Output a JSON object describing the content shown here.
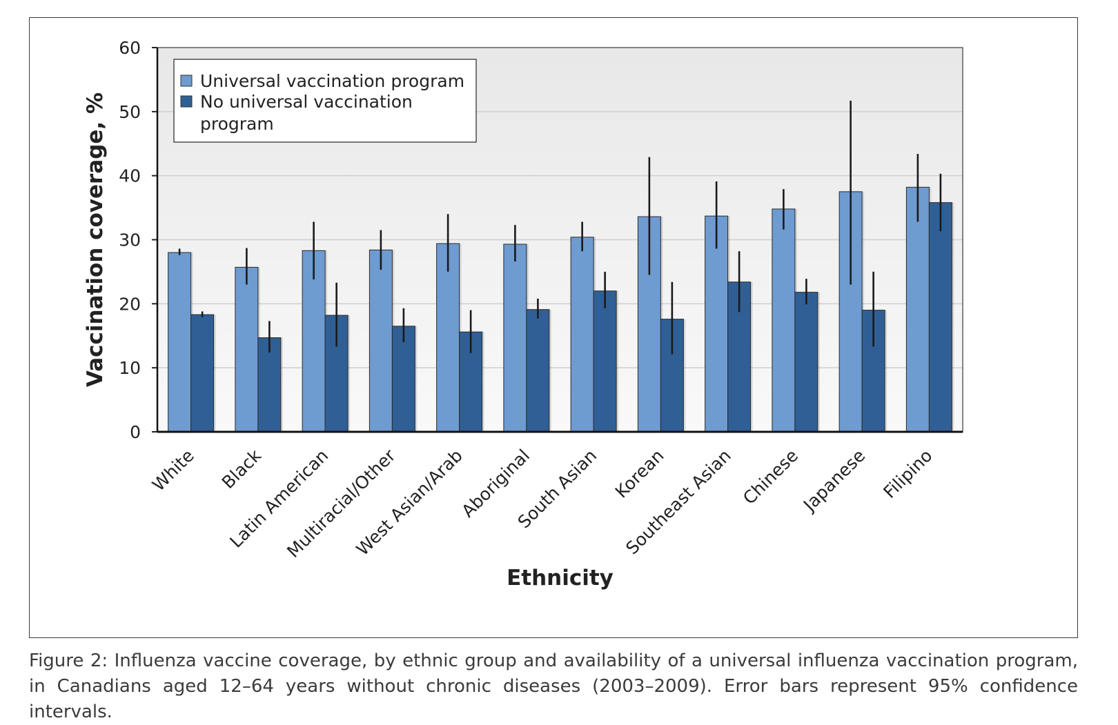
{
  "figure": {
    "caption": "Figure 2: Influenza vaccine coverage, by ethnic group and availability of a universal influenza vaccination program, in Canadians aged 12–64 years without chronic diseases (2003–2009). Error bars represent 95% confidence intervals."
  },
  "chart_data": {
    "type": "bar",
    "xlabel": "Ethnicity",
    "ylabel": "Vaccination coverage, %",
    "ylim": [
      0,
      60
    ],
    "yticks": [
      0,
      10,
      20,
      30,
      40,
      50,
      60
    ],
    "grid": true,
    "legend_position": "top-left",
    "categories": [
      "White",
      "Black",
      "Latin American",
      "Multiracial/Other",
      "West Asian/Arab",
      "Aboriginal",
      "South Asian",
      "Korean",
      "Southeast Asian",
      "Chinese",
      "Japanese",
      "Filipino"
    ],
    "series": [
      {
        "name": "Universal vaccination program",
        "color": "#6e9bd0",
        "values": [
          28.0,
          25.7,
          28.3,
          28.4,
          29.4,
          29.3,
          30.4,
          33.6,
          33.7,
          34.8,
          37.5,
          38.2
        ],
        "error_low": [
          27.6,
          23.0,
          23.8,
          25.3,
          25.0,
          26.6,
          28.2,
          24.5,
          28.6,
          31.6,
          23.0,
          32.8
        ],
        "error_high": [
          28.6,
          28.7,
          32.8,
          31.5,
          34.0,
          32.3,
          32.8,
          42.9,
          39.1,
          37.9,
          51.7,
          43.4
        ]
      },
      {
        "name": "No universal vaccination program",
        "color": "#2f5f95",
        "values": [
          18.3,
          14.7,
          18.2,
          16.5,
          15.6,
          19.1,
          22.0,
          17.6,
          23.4,
          21.8,
          19.0,
          35.8
        ],
        "error_low": [
          17.9,
          12.4,
          13.3,
          14.0,
          12.3,
          17.7,
          19.3,
          12.1,
          18.7,
          19.9,
          13.3,
          31.3
        ],
        "error_high": [
          18.8,
          17.3,
          23.3,
          19.3,
          19.0,
          20.8,
          25.0,
          23.4,
          28.2,
          23.9,
          25.0,
          40.3
        ]
      }
    ]
  }
}
